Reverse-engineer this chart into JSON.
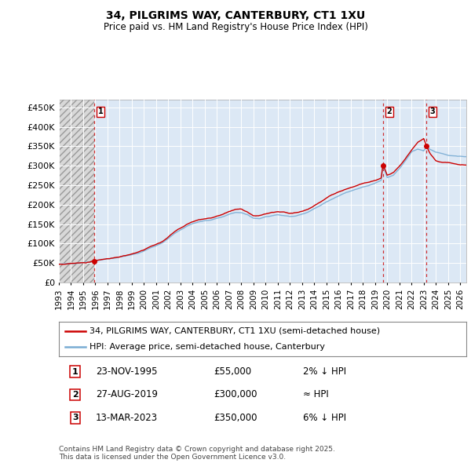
{
  "title_line1": "34, PILGRIMS WAY, CANTERBURY, CT1 1XU",
  "title_line2": "Price paid vs. HM Land Registry's House Price Index (HPI)",
  "ylim": [
    0,
    470000
  ],
  "yticks": [
    0,
    50000,
    100000,
    150000,
    200000,
    250000,
    300000,
    350000,
    400000,
    450000
  ],
  "ytick_labels": [
    "£0",
    "£50K",
    "£100K",
    "£150K",
    "£200K",
    "£250K",
    "£300K",
    "£350K",
    "£400K",
    "£450K"
  ],
  "xlim_start": 1993.0,
  "xlim_end": 2026.5,
  "xticks": [
    1993,
    1994,
    1995,
    1996,
    1997,
    1998,
    1999,
    2000,
    2001,
    2002,
    2003,
    2004,
    2005,
    2006,
    2007,
    2008,
    2009,
    2010,
    2011,
    2012,
    2013,
    2014,
    2015,
    2016,
    2017,
    2018,
    2019,
    2020,
    2021,
    2022,
    2023,
    2024,
    2025,
    2026
  ],
  "hpi_color": "#7aadd4",
  "price_color": "#cc0000",
  "background_plot": "#dce8f5",
  "hatch_end_year": 1995.9,
  "legend_label_price": "34, PILGRIMS WAY, CANTERBURY, CT1 1XU (semi-detached house)",
  "legend_label_hpi": "HPI: Average price, semi-detached house, Canterbury",
  "transactions": [
    {
      "num": 1,
      "date": "23-NOV-1995",
      "year": 1995.9,
      "price": 55000,
      "note": "2% ↓ HPI"
    },
    {
      "num": 2,
      "date": "27-AUG-2019",
      "year": 2019.65,
      "price": 300000,
      "note": "≈ HPI"
    },
    {
      "num": 3,
      "date": "13-MAR-2023",
      "year": 2023.2,
      "price": 350000,
      "note": "6% ↓ HPI"
    }
  ],
  "footer_line1": "Contains HM Land Registry data © Crown copyright and database right 2025.",
  "footer_line2": "This data is licensed under the Open Government Licence v3.0."
}
